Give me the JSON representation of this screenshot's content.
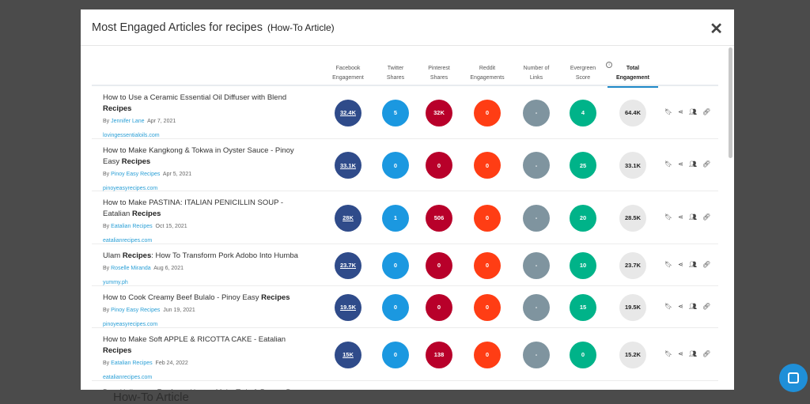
{
  "background_text": "How-To Article",
  "modal": {
    "title": "Most Engaged Articles for recipes",
    "subtitle": "(How-To Article)"
  },
  "columns": [
    {
      "l1": "Facebook",
      "l2": "Engagement"
    },
    {
      "l1": "Twitter",
      "l2": "Shares"
    },
    {
      "l1": "Pinterest",
      "l2": "Shares"
    },
    {
      "l1": "Reddit",
      "l2": "Engagements"
    },
    {
      "l1": "Number of",
      "l2": "Links"
    },
    {
      "l1": "Evergreen",
      "l2": "Score"
    },
    {
      "l1": "Total",
      "l2": "Engagement"
    }
  ],
  "rows": [
    {
      "pre": "How to Use a Ceramic Essential Oil Diffuser with Blend ",
      "kw": "Recipes",
      "post": "",
      "by": "By",
      "author": "Jennifer Lane",
      "date": "Apr 7, 2021",
      "domain": "lovingessentialoils.com",
      "fb": "32.4K",
      "tw": "5",
      "pi": "32K",
      "rd": "0",
      "ln": "-",
      "eg": "4",
      "tot": "64.4K"
    },
    {
      "pre": "How to Make Kangkong & Tokwa in Oyster Sauce - Pinoy Easy ",
      "kw": "Recipes",
      "post": "",
      "by": "By",
      "author": "Pinoy Easy Recipes",
      "date": "Apr 5, 2021",
      "domain": "pinoyeasyrecipes.com",
      "fb": "33.1K",
      "tw": "0",
      "pi": "0",
      "rd": "0",
      "ln": "-",
      "eg": "25",
      "tot": "33.1K"
    },
    {
      "pre": "How to Make PASTINA: ITALIAN PENICILLIN SOUP - Eatalian ",
      "kw": "Recipes",
      "post": "",
      "by": "By",
      "author": "Eatalian Recipes",
      "date": "Oct 15, 2021",
      "domain": "eatalianrecipes.com",
      "fb": "28K",
      "tw": "1",
      "pi": "506",
      "rd": "0",
      "ln": "-",
      "eg": "20",
      "tot": "28.5K"
    },
    {
      "pre": "Ulam ",
      "kw": "Recipes",
      "post": ": How To Transform Pork Adobo Into Humba",
      "by": "By",
      "author": "Roselle Miranda",
      "date": "Aug 6, 2021",
      "domain": "yummy.ph",
      "fb": "23.7K",
      "tw": "0",
      "pi": "0",
      "rd": "0",
      "ln": "-",
      "eg": "10",
      "tot": "23.7K"
    },
    {
      "pre": "How to Cook Creamy Beef Bulalo - Pinoy Easy ",
      "kw": "Recipes",
      "post": "",
      "by": "By",
      "author": "Pinoy Easy Recipes",
      "date": "Jun 19, 2021",
      "domain": "pinoyeasyrecipes.com",
      "fb": "19.5K",
      "tw": "0",
      "pi": "0",
      "rd": "0",
      "ln": "-",
      "eg": "15",
      "tot": "19.5K"
    },
    {
      "pre": "How to Make Soft APPLE & RICOTTA CAKE - Eatalian ",
      "kw": "Recipes",
      "post": "",
      "by": "By",
      "author": "Eatalian Recipes",
      "date": "Feb 24, 2022",
      "domain": "eatalianrecipes.com",
      "fb": "15K",
      "tw": "0",
      "pi": "138",
      "rd": "0",
      "ln": "-",
      "eg": "0",
      "tot": "15.2K"
    },
    {
      "pre": "Best Halloween ",
      "kw": "Recipes",
      "post": ": How to Make Twix & Peanut Butt",
      "by": "",
      "author": "",
      "date": "",
      "domain": "",
      "fb": "",
      "tw": "",
      "pi": "",
      "rd": "",
      "ln": "",
      "eg": "",
      "tot": ""
    }
  ]
}
